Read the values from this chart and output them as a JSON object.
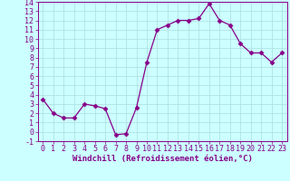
{
  "x": [
    0,
    1,
    2,
    3,
    4,
    5,
    6,
    7,
    8,
    9,
    10,
    11,
    12,
    13,
    14,
    15,
    16,
    17,
    18,
    19,
    20,
    21,
    22,
    23
  ],
  "y": [
    3.5,
    2.0,
    1.5,
    1.5,
    3.0,
    2.8,
    2.5,
    -0.3,
    -0.2,
    2.6,
    7.5,
    11.0,
    11.5,
    12.0,
    12.0,
    12.2,
    13.8,
    12.0,
    11.5,
    9.5,
    8.5,
    8.5,
    7.5,
    8.5
  ],
  "line_color": "#880088",
  "marker": "D",
  "marker_size": 2.5,
  "bg_color": "#ccffff",
  "grid_color": "#aadddd",
  "xlabel": "Windchill (Refroidissement éolien,°C)",
  "xlabel_fontsize": 6.5,
  "tick_fontsize": 6.0,
  "ylim": [
    -1,
    14
  ],
  "yticks": [
    -1,
    0,
    1,
    2,
    3,
    4,
    5,
    6,
    7,
    8,
    9,
    10,
    11,
    12,
    13,
    14
  ],
  "xlim": [
    -0.5,
    23.5
  ]
}
